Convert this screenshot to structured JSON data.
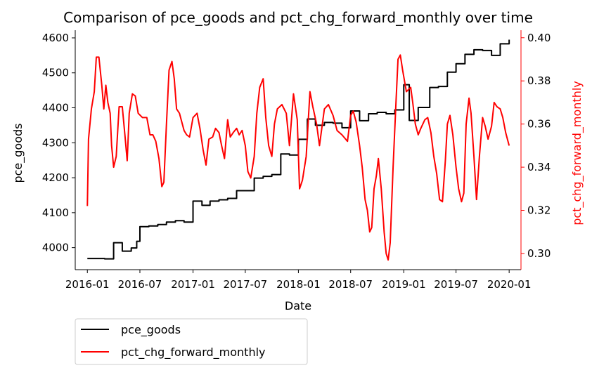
{
  "chart_data": {
    "type": "line",
    "title": "Comparison of pce_goods and pct_chg_forward_monthly over time",
    "xlabel": "Date",
    "ylabel_left": "pce_goods",
    "ylabel_right": "pct_chg_forward_monthly",
    "x_ticks": [
      "2016-01",
      "2016-07",
      "2017-01",
      "2017-07",
      "2018-01",
      "2018-07",
      "2019-01",
      "2019-07",
      "2020-01"
    ],
    "y_left_ticks": [
      "4000",
      "4100",
      "4200",
      "4300",
      "4400",
      "4500",
      "4600"
    ],
    "y_right_ticks": [
      "0.30",
      "0.32",
      "0.34",
      "0.36",
      "0.38",
      "0.40"
    ],
    "xlim": [
      "2015-11-20",
      "2020-02-11"
    ],
    "ylim_left": [
      3937,
      4622
    ],
    "ylim_right": [
      0.2925,
      0.4035
    ],
    "legend": {
      "placement": "below-left-outside",
      "entries": [
        {
          "label": "pce_goods",
          "color": "#000000"
        },
        {
          "label": "pct_chg_forward_monthly",
          "color": "#ff0000"
        }
      ]
    },
    "colors": {
      "left_axis": "#000000",
      "right_axis": "#ff0000"
    },
    "grid": false,
    "series": [
      {
        "name": "pce_goods",
        "axis": "left",
        "step": true,
        "color": "#000000",
        "points": [
          [
            "2016-01-01",
            3969
          ],
          [
            "2016-02-01",
            3969
          ],
          [
            "2016-03-01",
            3968
          ],
          [
            "2016-04-01",
            4014
          ],
          [
            "2016-05-01",
            3990
          ],
          [
            "2016-06-01",
            3999
          ],
          [
            "2016-06-20",
            4018
          ],
          [
            "2016-07-01",
            4060
          ],
          [
            "2016-08-01",
            4062
          ],
          [
            "2016-09-01",
            4066
          ],
          [
            "2016-10-01",
            4073
          ],
          [
            "2016-11-01",
            4077
          ],
          [
            "2016-12-01",
            4073
          ],
          [
            "2017-01-01",
            4133
          ],
          [
            "2017-02-01",
            4121
          ],
          [
            "2017-03-01",
            4133
          ],
          [
            "2017-04-01",
            4137
          ],
          [
            "2017-05-01",
            4141
          ],
          [
            "2017-06-01",
            4163
          ],
          [
            "2017-07-01",
            4163
          ],
          [
            "2017-08-01",
            4199
          ],
          [
            "2017-09-01",
            4204
          ],
          [
            "2017-10-01",
            4209
          ],
          [
            "2017-11-01",
            4268
          ],
          [
            "2017-12-01",
            4265
          ],
          [
            "2018-01-01",
            4310
          ],
          [
            "2018-02-01",
            4368
          ],
          [
            "2018-03-01",
            4350
          ],
          [
            "2018-04-01",
            4358
          ],
          [
            "2018-05-01",
            4356
          ],
          [
            "2018-06-01",
            4343
          ],
          [
            "2018-07-01",
            4391
          ],
          [
            "2018-08-01",
            4363
          ],
          [
            "2018-09-01",
            4383
          ],
          [
            "2018-10-01",
            4387
          ],
          [
            "2018-11-01",
            4383
          ],
          [
            "2018-12-01",
            4394
          ],
          [
            "2019-01-01",
            4466
          ],
          [
            "2019-01-20",
            4364
          ],
          [
            "2019-02-20",
            4401
          ],
          [
            "2019-04-01",
            4458
          ],
          [
            "2019-05-01",
            4461
          ],
          [
            "2019-06-01",
            4502
          ],
          [
            "2019-07-01",
            4526
          ],
          [
            "2019-08-01",
            4553
          ],
          [
            "2019-09-01",
            4566
          ],
          [
            "2019-10-01",
            4564
          ],
          [
            "2019-11-01",
            4550
          ],
          [
            "2019-12-01",
            4583
          ],
          [
            "2020-01-01",
            4595
          ]
        ]
      },
      {
        "name": "pct_chg_forward_monthly",
        "axis": "right",
        "step": false,
        "color": "#ff0000",
        "points": [
          [
            "2016-01-01",
            0.322
          ],
          [
            "2016-01-05",
            0.353
          ],
          [
            "2016-01-15",
            0.367
          ],
          [
            "2016-01-25",
            0.375
          ],
          [
            "2016-02-01",
            0.391
          ],
          [
            "2016-02-10",
            0.391
          ],
          [
            "2016-02-20",
            0.378
          ],
          [
            "2016-02-27",
            0.367
          ],
          [
            "2016-03-05",
            0.378
          ],
          [
            "2016-03-12",
            0.37
          ],
          [
            "2016-03-20",
            0.365
          ],
          [
            "2016-03-25",
            0.35
          ],
          [
            "2016-04-01",
            0.34
          ],
          [
            "2016-04-10",
            0.345
          ],
          [
            "2016-04-20",
            0.368
          ],
          [
            "2016-05-01",
            0.368
          ],
          [
            "2016-05-10",
            0.355
          ],
          [
            "2016-05-18",
            0.343
          ],
          [
            "2016-05-25",
            0.365
          ],
          [
            "2016-06-05",
            0.374
          ],
          [
            "2016-06-15",
            0.373
          ],
          [
            "2016-06-25",
            0.365
          ],
          [
            "2016-07-10",
            0.363
          ],
          [
            "2016-07-25",
            0.363
          ],
          [
            "2016-08-05",
            0.355
          ],
          [
            "2016-08-15",
            0.355
          ],
          [
            "2016-08-25",
            0.352
          ],
          [
            "2016-09-05",
            0.344
          ],
          [
            "2016-09-15",
            0.331
          ],
          [
            "2016-09-22",
            0.333
          ],
          [
            "2016-10-01",
            0.36
          ],
          [
            "2016-10-10",
            0.385
          ],
          [
            "2016-10-20",
            0.389
          ],
          [
            "2016-10-28",
            0.381
          ],
          [
            "2016-11-05",
            0.367
          ],
          [
            "2016-11-15",
            0.365
          ],
          [
            "2016-12-01",
            0.357
          ],
          [
            "2016-12-10",
            0.355
          ],
          [
            "2016-12-20",
            0.354
          ],
          [
            "2017-01-01",
            0.363
          ],
          [
            "2017-01-15",
            0.365
          ],
          [
            "2017-01-25",
            0.358
          ],
          [
            "2017-02-05",
            0.348
          ],
          [
            "2017-02-15",
            0.341
          ],
          [
            "2017-02-25",
            0.353
          ],
          [
            "2017-03-10",
            0.354
          ],
          [
            "2017-03-20",
            0.358
          ],
          [
            "2017-04-01",
            0.356
          ],
          [
            "2017-04-10",
            0.35
          ],
          [
            "2017-04-20",
            0.344
          ],
          [
            "2017-05-01",
            0.362
          ],
          [
            "2017-05-10",
            0.354
          ],
          [
            "2017-05-20",
            0.356
          ],
          [
            "2017-06-01",
            0.358
          ],
          [
            "2017-06-10",
            0.355
          ],
          [
            "2017-06-20",
            0.357
          ],
          [
            "2017-07-01",
            0.35
          ],
          [
            "2017-07-10",
            0.338
          ],
          [
            "2017-07-20",
            0.335
          ],
          [
            "2017-08-01",
            0.345
          ],
          [
            "2017-08-10",
            0.365
          ],
          [
            "2017-08-20",
            0.377
          ],
          [
            "2017-09-01",
            0.381
          ],
          [
            "2017-09-10",
            0.363
          ],
          [
            "2017-09-20",
            0.35
          ],
          [
            "2017-10-01",
            0.345
          ],
          [
            "2017-10-10",
            0.36
          ],
          [
            "2017-10-20",
            0.367
          ],
          [
            "2017-11-05",
            0.369
          ],
          [
            "2017-11-20",
            0.365
          ],
          [
            "2017-12-01",
            0.35
          ],
          [
            "2017-12-15",
            0.374
          ],
          [
            "2017-12-28",
            0.362
          ],
          [
            "2018-01-05",
            0.33
          ],
          [
            "2018-01-15",
            0.334
          ],
          [
            "2018-01-28",
            0.345
          ],
          [
            "2018-02-10",
            0.375
          ],
          [
            "2018-02-20",
            0.368
          ],
          [
            "2018-03-05",
            0.36
          ],
          [
            "2018-03-15",
            0.35
          ],
          [
            "2018-04-01",
            0.367
          ],
          [
            "2018-04-15",
            0.369
          ],
          [
            "2018-05-01",
            0.364
          ],
          [
            "2018-05-15",
            0.357
          ],
          [
            "2018-06-01",
            0.355
          ],
          [
            "2018-06-20",
            0.352
          ],
          [
            "2018-07-01",
            0.364
          ],
          [
            "2018-07-10",
            0.366
          ],
          [
            "2018-07-20",
            0.361
          ],
          [
            "2018-08-01",
            0.35
          ],
          [
            "2018-08-10",
            0.34
          ],
          [
            "2018-08-20",
            0.325
          ],
          [
            "2018-08-28",
            0.32
          ],
          [
            "2018-09-05",
            0.31
          ],
          [
            "2018-09-12",
            0.312
          ],
          [
            "2018-09-20",
            0.33
          ],
          [
            "2018-09-28",
            0.336
          ],
          [
            "2018-10-05",
            0.344
          ],
          [
            "2018-10-15",
            0.33
          ],
          [
            "2018-10-25",
            0.31
          ],
          [
            "2018-11-01",
            0.3
          ],
          [
            "2018-11-08",
            0.297
          ],
          [
            "2018-11-15",
            0.305
          ],
          [
            "2018-11-25",
            0.34
          ],
          [
            "2018-12-05",
            0.37
          ],
          [
            "2018-12-12",
            0.39
          ],
          [
            "2018-12-20",
            0.392
          ],
          [
            "2018-12-28",
            0.385
          ],
          [
            "2019-01-10",
            0.375
          ],
          [
            "2019-01-25",
            0.377
          ],
          [
            "2019-02-01",
            0.37
          ],
          [
            "2019-02-10",
            0.36
          ],
          [
            "2019-02-20",
            0.355
          ],
          [
            "2019-03-01",
            0.358
          ],
          [
            "2019-03-15",
            0.362
          ],
          [
            "2019-03-25",
            0.363
          ],
          [
            "2019-04-05",
            0.356
          ],
          [
            "2019-04-15",
            0.345
          ],
          [
            "2019-04-25",
            0.337
          ],
          [
            "2019-05-05",
            0.325
          ],
          [
            "2019-05-15",
            0.324
          ],
          [
            "2019-05-25",
            0.343
          ],
          [
            "2019-06-01",
            0.36
          ],
          [
            "2019-06-10",
            0.364
          ],
          [
            "2019-06-20",
            0.355
          ],
          [
            "2019-07-01",
            0.34
          ],
          [
            "2019-07-10",
            0.33
          ],
          [
            "2019-07-20",
            0.324
          ],
          [
            "2019-07-28",
            0.328
          ],
          [
            "2019-08-05",
            0.36
          ],
          [
            "2019-08-15",
            0.372
          ],
          [
            "2019-08-22",
            0.365
          ],
          [
            "2019-09-01",
            0.345
          ],
          [
            "2019-09-10",
            0.325
          ],
          [
            "2019-09-20",
            0.345
          ],
          [
            "2019-10-01",
            0.363
          ],
          [
            "2019-10-10",
            0.359
          ],
          [
            "2019-10-20",
            0.353
          ],
          [
            "2019-11-01",
            0.359
          ],
          [
            "2019-11-10",
            0.37
          ],
          [
            "2019-11-20",
            0.368
          ],
          [
            "2019-12-01",
            0.367
          ],
          [
            "2019-12-10",
            0.363
          ],
          [
            "2019-12-20",
            0.356
          ],
          [
            "2019-12-28",
            0.352
          ],
          [
            "2020-01-01",
            0.35
          ]
        ]
      }
    ]
  }
}
